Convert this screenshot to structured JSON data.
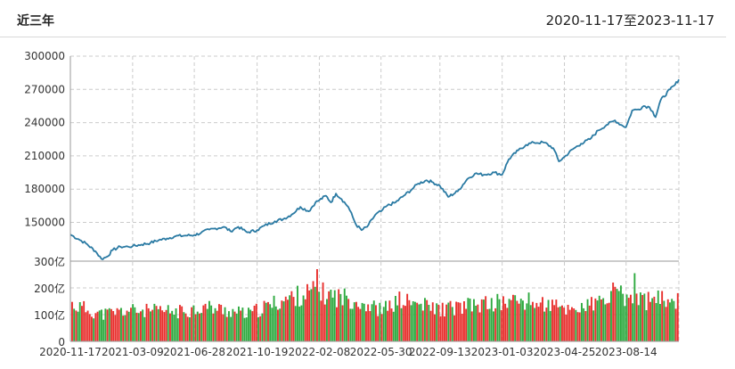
{
  "header": {
    "period_label": "近三年",
    "date_range": "2020-11-17至2023-11-17"
  },
  "colors": {
    "price_line": "#2a7aa3",
    "volume_up": "#e8302e",
    "volume_down": "#2eaa40",
    "grid": "#cccccc"
  },
  "chart_data": [
    {
      "type": "line",
      "title": "",
      "y_ticks": [
        "300000",
        "270000",
        "240000",
        "210000",
        "180000",
        "150000"
      ],
      "ylim": [
        115000,
        300000
      ],
      "grid": true,
      "series": [
        {
          "points": [
            [
              "2020-11-17",
              139000
            ],
            [
              "2020-12-01",
              135000
            ],
            [
              "2020-12-15",
              131000
            ],
            [
              "2021-01-01",
              124000
            ],
            [
              "2021-01-12",
              117000
            ],
            [
              "2021-01-22",
              119000
            ],
            [
              "2021-02-01",
              125000
            ],
            [
              "2021-02-15",
              128000
            ],
            [
              "2021-03-01",
              128000
            ],
            [
              "2021-03-09",
              128500
            ],
            [
              "2021-03-25",
              130000
            ],
            [
              "2021-04-10",
              131500
            ],
            [
              "2021-04-25",
              134000
            ],
            [
              "2021-05-10",
              135500
            ],
            [
              "2021-05-25",
              137500
            ],
            [
              "2021-06-10",
              138000
            ],
            [
              "2021-06-28",
              138500
            ],
            [
              "2021-07-10",
              140500
            ],
            [
              "2021-07-25",
              143500
            ],
            [
              "2021-08-05",
              144500
            ],
            [
              "2021-08-20",
              146000
            ],
            [
              "2021-09-01",
              142000
            ],
            [
              "2021-09-15",
              146000
            ],
            [
              "2021-10-01",
              141000
            ],
            [
              "2021-10-19",
              143000
            ],
            [
              "2021-11-01",
              147000
            ],
            [
              "2021-11-20",
              151000
            ],
            [
              "2021-12-05",
              153000
            ],
            [
              "2021-12-20",
              157000
            ],
            [
              "2022-01-05",
              164000
            ],
            [
              "2022-01-20",
              160000
            ],
            [
              "2022-02-01",
              168000
            ],
            [
              "2022-02-08",
              170000
            ],
            [
              "2022-02-20",
              174000
            ],
            [
              "2022-03-01",
              168000
            ],
            [
              "2022-03-10",
              176000
            ],
            [
              "2022-03-20",
              171000
            ],
            [
              "2022-04-01",
              164000
            ],
            [
              "2022-04-15",
              148000
            ],
            [
              "2022-04-25",
              143000
            ],
            [
              "2022-05-05",
              146000
            ],
            [
              "2022-05-20",
              157000
            ],
            [
              "2022-05-30",
              160000
            ],
            [
              "2022-06-10",
              165000
            ],
            [
              "2022-06-25",
              168000
            ],
            [
              "2022-07-10",
              174000
            ],
            [
              "2022-07-25",
              180000
            ],
            [
              "2022-08-05",
              185000
            ],
            [
              "2022-08-20",
              188000
            ],
            [
              "2022-09-01",
              186000
            ],
            [
              "2022-09-13",
              183000
            ],
            [
              "2022-09-28",
              173000
            ],
            [
              "2022-10-15",
              178000
            ],
            [
              "2022-11-01",
              189000
            ],
            [
              "2022-11-15",
              194000
            ],
            [
              "2022-12-01",
              193000
            ],
            [
              "2022-12-20",
              195000
            ],
            [
              "2023-01-03",
              193000
            ],
            [
              "2023-01-15",
              207000
            ],
            [
              "2023-02-01",
              215000
            ],
            [
              "2023-02-15",
              220000
            ],
            [
              "2023-03-01",
              222000
            ],
            [
              "2023-03-20",
              222000
            ],
            [
              "2023-04-05",
              217000
            ],
            [
              "2023-04-15",
              205000
            ],
            [
              "2023-04-25",
              209000
            ],
            [
              "2023-05-10",
              216000
            ],
            [
              "2023-05-25",
              221000
            ],
            [
              "2023-06-10",
              225000
            ],
            [
              "2023-06-25",
              233000
            ],
            [
              "2023-07-10",
              238000
            ],
            [
              "2023-07-25",
              242000
            ],
            [
              "2023-08-05",
              238000
            ],
            [
              "2023-08-14",
              236000
            ],
            [
              "2023-08-25",
              251000
            ],
            [
              "2023-09-05",
              252000
            ],
            [
              "2023-09-15",
              255000
            ],
            [
              "2023-09-25",
              254000
            ],
            [
              "2023-10-01",
              250000
            ],
            [
              "2023-10-06",
              245000
            ],
            [
              "2023-10-15",
              260000
            ],
            [
              "2023-11-01",
              270000
            ],
            [
              "2023-11-10",
              274000
            ],
            [
              "2023-11-17",
              279000
            ]
          ]
        }
      ]
    },
    {
      "type": "bar",
      "title": "",
      "y_ticks": [
        "300亿",
        "200亿",
        "100亿",
        "0"
      ],
      "ylim": [
        0,
        300
      ],
      "x_ticks": [
        "2020-11-17",
        "2021-03-09",
        "2021-06-28",
        "2021-10-19",
        "2022-02-08",
        "2022-05-30",
        "2022-09-13",
        "2023-01-03",
        "2023-04-25",
        "2023-08-14"
      ],
      "x_range": [
        "2020-11-17",
        "2023-11-17"
      ],
      "series": [
        {
          "keyframes": [
            [
              "2020-11-17",
              150
            ],
            [
              "2021-01-10",
              110
            ],
            [
              "2021-03-01",
              125
            ],
            [
              "2021-06-01",
              120
            ],
            [
              "2021-07-15",
              140
            ],
            [
              "2021-10-01",
              110
            ],
            [
              "2021-12-01",
              165
            ],
            [
              "2022-01-25",
              200
            ],
            [
              "2022-03-01",
              185
            ],
            [
              "2022-04-10",
              170
            ],
            [
              "2022-05-30",
              125
            ],
            [
              "2022-07-01",
              165
            ],
            [
              "2022-09-13",
              130
            ],
            [
              "2022-12-01",
              150
            ],
            [
              "2023-02-01",
              165
            ],
            [
              "2023-03-20",
              150
            ],
            [
              "2023-04-25",
              130
            ],
            [
              "2023-06-01",
              140
            ],
            [
              "2023-08-01",
              185
            ],
            [
              "2023-09-20",
              165
            ],
            [
              "2023-11-17",
              170
            ]
          ],
          "highlights": [
            [
              "2022-02-01",
              270
            ],
            [
              "2023-08-28",
              255
            ],
            [
              "2023-07-20",
              220
            ]
          ]
        }
      ]
    }
  ]
}
